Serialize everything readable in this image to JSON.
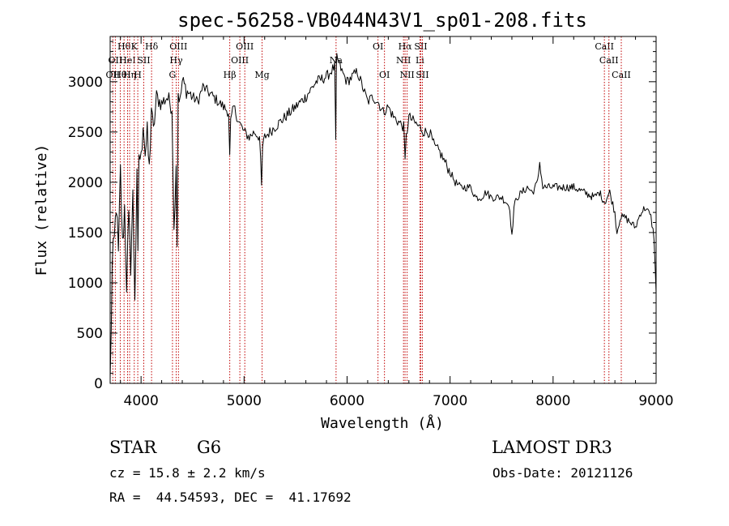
{
  "chart_data": {
    "type": "line",
    "title": "spec-56258-VB044N43V1_sp01-208.fits",
    "xlabel": "Wavelength (Å)",
    "ylabel": "Flux (relative)",
    "xlim": [
      3700,
      9000
    ],
    "ylim": [
      0,
      3450
    ],
    "x_ticks": [
      4000,
      5000,
      6000,
      7000,
      8000,
      9000
    ],
    "x_tick_labels": [
      "4000",
      "5000",
      "6000",
      "7000",
      "8000",
      "9000"
    ],
    "y_ticks": [
      0,
      500,
      1000,
      1500,
      2000,
      2500,
      3000
    ],
    "y_tick_labels": [
      "0",
      "500",
      "1000",
      "1500",
      "2000",
      "2500",
      "3000"
    ],
    "grid": false,
    "series": [
      {
        "name": "spectrum",
        "x": [
          3700,
          3720,
          3740,
          3760,
          3780,
          3800,
          3820,
          3840,
          3860,
          3880,
          3900,
          3920,
          3940,
          3960,
          3970,
          3980,
          4000,
          4020,
          4040,
          4060,
          4080,
          4100,
          4120,
          4150,
          4200,
          4250,
          4300,
          4320,
          4340,
          4350,
          4360,
          4380,
          4400,
          4450,
          4500,
          4550,
          4600,
          4650,
          4700,
          4750,
          4800,
          4850,
          4861,
          4870,
          4900,
          4950,
          5000,
          5050,
          5100,
          5150,
          5170,
          5180,
          5200,
          5250,
          5300,
          5400,
          5500,
          5600,
          5700,
          5800,
          5880,
          5890,
          5896,
          5900,
          5950,
          6000,
          6050,
          6100,
          6150,
          6200,
          6250,
          6300,
          6350,
          6400,
          6450,
          6500,
          6550,
          6563,
          6575,
          6600,
          6650,
          6700,
          6750,
          6800,
          6850,
          6900,
          6950,
          7000,
          7050,
          7100,
          7150,
          7200,
          7250,
          7300,
          7350,
          7400,
          7450,
          7500,
          7550,
          7580,
          7600,
          7620,
          7650,
          7700,
          7750,
          7800,
          7850,
          7870,
          7900,
          7950,
          8000,
          8100,
          8200,
          8300,
          8400,
          8450,
          8500,
          8550,
          8600,
          8620,
          8650,
          8700,
          8750,
          8800,
          8850,
          8900,
          8950,
          8980,
          9000
        ],
        "y": [
          0,
          1150,
          1400,
          1800,
          1250,
          2100,
          1350,
          1750,
          1000,
          1600,
          1200,
          1850,
          900,
          2000,
          1200,
          2300,
          2200,
          2650,
          2300,
          2450,
          2100,
          2750,
          2500,
          2850,
          2780,
          2850,
          2750,
          1500,
          2200,
          1400,
          2900,
          2800,
          3000,
          2900,
          2850,
          2800,
          2950,
          2900,
          2850,
          2800,
          2750,
          2700,
          2250,
          2600,
          2750,
          2600,
          2500,
          2450,
          2500,
          2450,
          1950,
          2350,
          2450,
          2500,
          2550,
          2650,
          2750,
          2850,
          3000,
          3050,
          3150,
          2400,
          3100,
          3250,
          3100,
          3000,
          3050,
          3100,
          2950,
          2800,
          2850,
          2800,
          2700,
          2750,
          2650,
          2600,
          2550,
          2200,
          2450,
          2650,
          2600,
          2550,
          2500,
          2500,
          2350,
          2300,
          2200,
          2100,
          2000,
          1950,
          1950,
          1950,
          1850,
          1850,
          1900,
          1850,
          1850,
          1850,
          1800,
          1750,
          1450,
          1750,
          1850,
          1900,
          1950,
          1900,
          2000,
          2200,
          1950,
          1950,
          1950,
          1950,
          1950,
          1900,
          1850,
          1900,
          1800,
          1900,
          1700,
          1500,
          1650,
          1650,
          1600,
          1550,
          1700,
          1750,
          1650,
          1450,
          900
        ]
      }
    ],
    "line_markers": [
      {
        "x": 3726,
        "row": 2,
        "label": "OII"
      },
      {
        "x": 3750,
        "row": 1,
        "label": "OII"
      },
      {
        "x": 3798,
        "row": 2,
        "label": "Hθ"
      },
      {
        "x": 3835,
        "row": 0,
        "label": "Hθ"
      },
      {
        "x": 3869,
        "row": 1,
        "label": "HeI"
      },
      {
        "x": 3889,
        "row": 2,
        "label": "Hη"
      },
      {
        "x": 3934,
        "row": 0,
        "label": "K"
      },
      {
        "x": 3968,
        "row": 2,
        "label": "H"
      },
      {
        "x": 4026,
        "row": 1,
        "label": "SII"
      },
      {
        "x": 4102,
        "row": 0,
        "label": "Hδ"
      },
      {
        "x": 4305,
        "row": 2,
        "label": "G"
      },
      {
        "x": 4341,
        "row": 1,
        "label": "Hγ"
      },
      {
        "x": 4363,
        "row": 0,
        "label": "OIII"
      },
      {
        "x": 4861,
        "row": 2,
        "label": "Hβ"
      },
      {
        "x": 4959,
        "row": 1,
        "label": "OIII"
      },
      {
        "x": 5007,
        "row": 0,
        "label": "OIII"
      },
      {
        "x": 5175,
        "row": 2,
        "label": "Mg"
      },
      {
        "x": 5893,
        "row": 1,
        "label": "Na"
      },
      {
        "x": 6300,
        "row": 0,
        "label": "OI"
      },
      {
        "x": 6363,
        "row": 2,
        "label": "OI"
      },
      {
        "x": 6548,
        "row": 1,
        "label": "NII"
      },
      {
        "x": 6563,
        "row": 0,
        "label": "Hα"
      },
      {
        "x": 6583,
        "row": 2,
        "label": "NII"
      },
      {
        "x": 6707,
        "row": 1,
        "label": "Li"
      },
      {
        "x": 6716,
        "row": 0,
        "label": "SII"
      },
      {
        "x": 6731,
        "row": 2,
        "label": "SII"
      },
      {
        "x": 8498,
        "row": 0,
        "label": "CaII"
      },
      {
        "x": 8542,
        "row": 1,
        "label": "CaII"
      },
      {
        "x": 8662,
        "row": 2,
        "label": "CaII"
      }
    ]
  },
  "info": {
    "class_label": "STAR",
    "subclass": "G6",
    "survey": "LAMOST DR3",
    "redshift_line": "cz = 15.8 ± 2.2 km/s",
    "obs_date_line": "Obs-Date: 20121126",
    "coords_line": "RA =  44.54593, DEC =  41.17692"
  }
}
